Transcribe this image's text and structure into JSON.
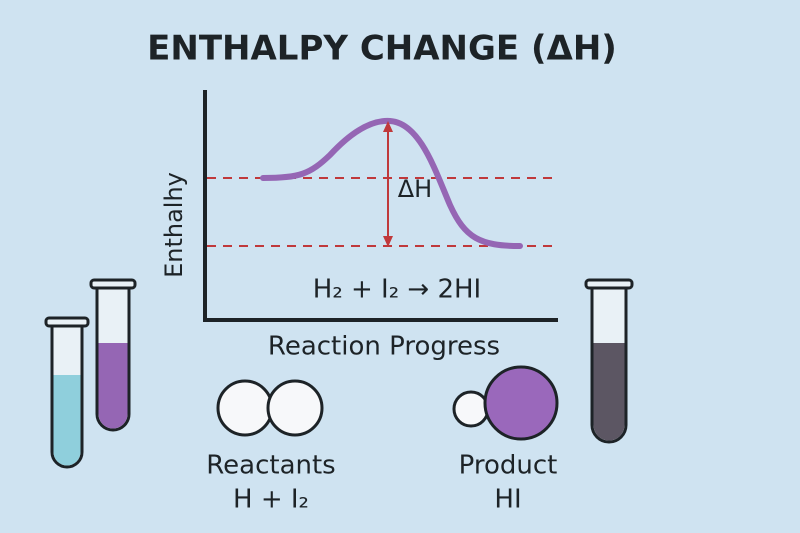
{
  "title": "ENTHALPY CHANGE (ΔH)",
  "axes": {
    "y_label": "Enthalhy",
    "x_label": "Reaction Progress"
  },
  "annotations": {
    "delta_h": "ΔH",
    "equation": "H₂ + I₂ → 2HI"
  },
  "reactants": {
    "label": "Reactants",
    "formula": "H + I₂"
  },
  "product": {
    "label": "Product",
    "formula": "HI"
  }
}
